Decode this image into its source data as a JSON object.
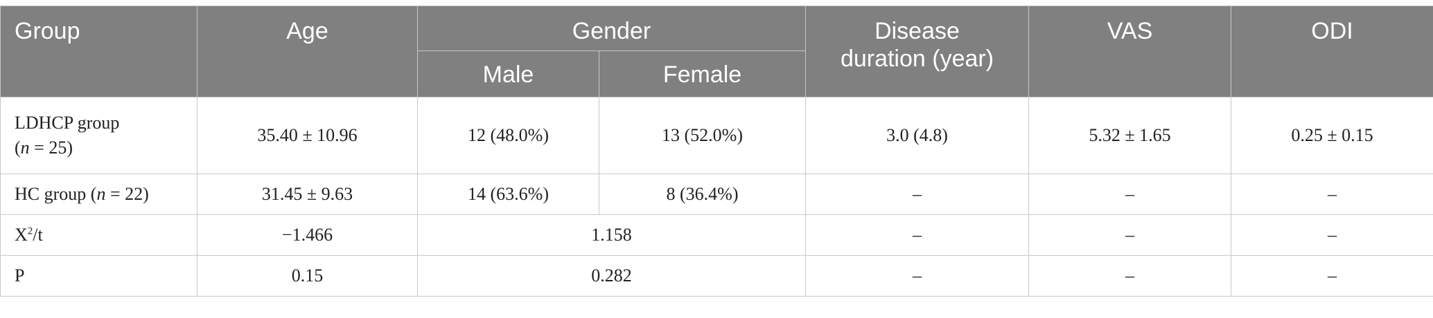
{
  "header": {
    "group": "Group",
    "age": "Age",
    "gender": "Gender",
    "male": "Male",
    "female": "Female",
    "disease_duration_line1": "Disease",
    "disease_duration_line2": "duration (year)",
    "vas": "VAS",
    "odi": "ODI"
  },
  "rows": {
    "ldhcp": {
      "group_text": "LDHCP group",
      "group_n_open": "(",
      "group_n_var": "n",
      "group_n_rest": " = 25)",
      "age": "35.40 ± 10.96",
      "male": "12 (48.0%)",
      "female": "13 (52.0%)",
      "disease_duration": "3.0 (4.8)",
      "vas": "5.32 ± 1.65",
      "odi": "0.25 ± 0.15"
    },
    "hc": {
      "group_text": "HC group (",
      "group_n_var": "n",
      "group_n_rest": " = 22)",
      "age": "31.45 ± 9.63",
      "male": "14 (63.6%)",
      "female": "8 (36.4%)",
      "disease_duration": "–",
      "vas": "–",
      "odi": "–"
    },
    "stat": {
      "label_base": "X",
      "label_sup": "2",
      "label_rest": "/t",
      "age": "−1.466",
      "gender": "1.158",
      "disease_duration": "–",
      "vas": "–",
      "odi": "–"
    },
    "p": {
      "label": "P",
      "age": "0.15",
      "gender": "0.282",
      "disease_duration": "–",
      "vas": "–",
      "odi": "–"
    }
  },
  "colors": {
    "header_bg": "#808080",
    "header_text": "#ffffff",
    "grid": "#c8c8c8"
  }
}
